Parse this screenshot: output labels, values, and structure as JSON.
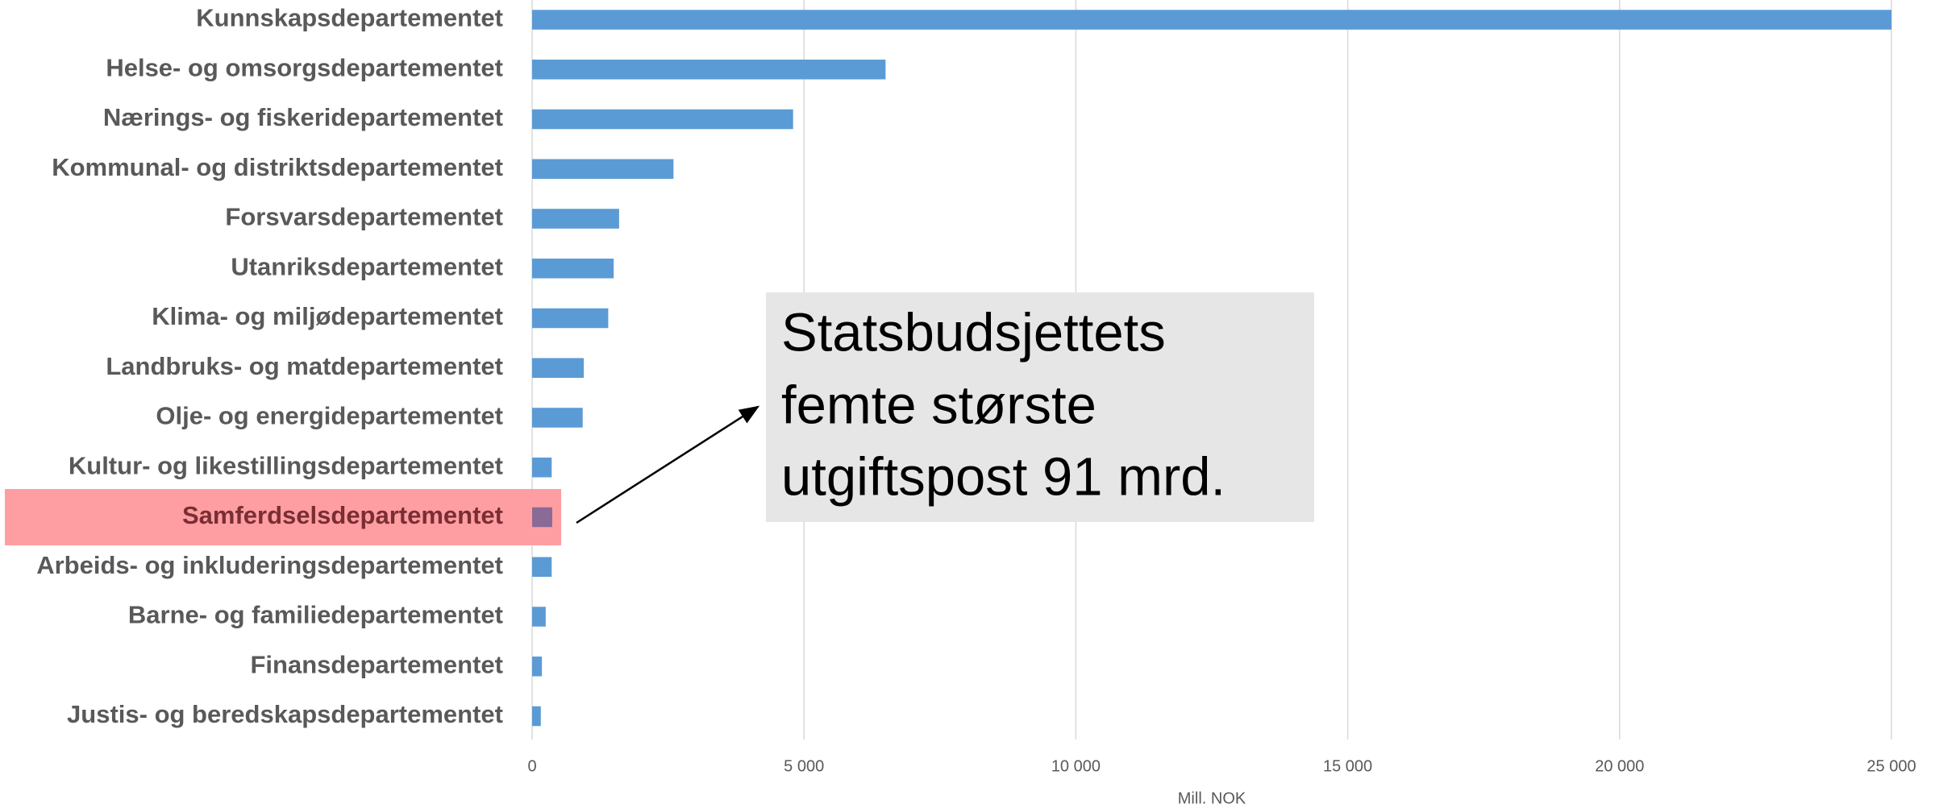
{
  "chart_data": {
    "type": "barh",
    "categories": [
      "Kunnskapsdepartementet",
      "Helse- og omsorgsdepartementet",
      "Nærings- og fiskeridepartementet",
      "Kommunal- og distriktsdepartementet",
      "Forsvarsdepartementet",
      "Utanriksdepartementet",
      "Klima- og miljødepartementet",
      "Landbruks- og matdepartementet",
      "Olje- og energidepartementet",
      "Kultur- og likestillingsdepartementet",
      "Samferdselsdepartementet",
      "Arbeids- og inkluderingsdepartementet",
      "Barne- og familiedepartementet",
      "Finansdepartementet",
      "Justis- og beredskapsdepartementet"
    ],
    "values": [
      25000,
      6500,
      4800,
      2600,
      1600,
      1500,
      1400,
      950,
      930,
      360,
      370,
      360,
      250,
      180,
      160
    ],
    "color": "#5b9bd5",
    "highlight_index": 10,
    "highlight_color": "#ff9ea2",
    "xlim": [
      0,
      25000
    ],
    "xticks": [
      0,
      {
        "value": 5000,
        "label": "5 000"
      },
      {
        "value": 10000,
        "label": "10 000"
      },
      {
        "value": 15000,
        "label": "15 000"
      },
      {
        "value": 20000,
        "label": "20 000"
      },
      {
        "value": 25000,
        "label": "25 000"
      }
    ],
    "xlabel": "Mill. NOK",
    "grid": true,
    "annotation": [
      "Statsbudsjettets",
      "femte største",
      "utgiftspost 91 mrd."
    ]
  }
}
